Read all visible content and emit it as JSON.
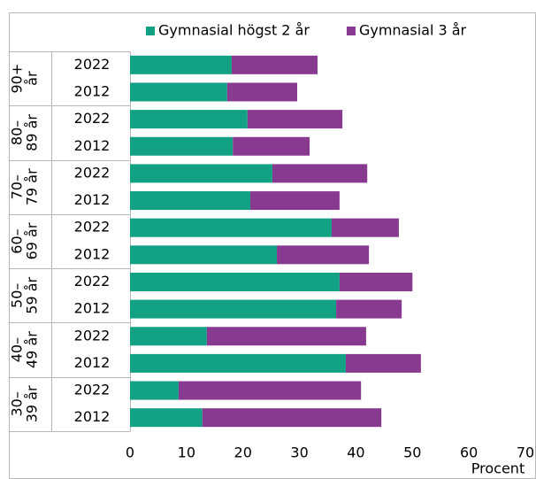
{
  "chart_data": {
    "type": "stacked-bar-horizontal",
    "groups": [
      {
        "label": [
          "90+",
          "år"
        ],
        "categories": [
          "2022",
          "2012"
        ]
      },
      {
        "label": [
          "80–",
          "89 år"
        ],
        "categories": [
          "2022",
          "2012"
        ]
      },
      {
        "label": [
          "70–",
          "79 år"
        ],
        "categories": [
          "2022",
          "2012"
        ]
      },
      {
        "label": [
          "60–",
          "69 år"
        ],
        "categories": [
          "2022",
          "2012"
        ]
      },
      {
        "label": [
          "50–",
          "59 år"
        ],
        "categories": [
          "2022",
          "2012"
        ]
      },
      {
        "label": [
          "40–",
          "49 år"
        ],
        "categories": [
          "2022",
          "2012"
        ]
      },
      {
        "label": [
          "30–",
          "39 år"
        ],
        "categories": [
          "2022",
          "2012"
        ]
      }
    ],
    "series": [
      {
        "name": "Gymnasial högst 2 år",
        "color": "#12a183",
        "values": [
          18.0,
          17.2,
          20.8,
          18.2,
          25.2,
          21.3,
          35.7,
          26.0,
          37.1,
          36.5,
          13.6,
          38.2,
          8.6,
          12.8
        ]
      },
      {
        "name": "Gymnasial 3 år",
        "color": "#873a90",
        "values": [
          15.2,
          12.4,
          16.8,
          13.6,
          16.8,
          15.8,
          11.9,
          16.3,
          12.9,
          11.6,
          28.2,
          13.3,
          32.3,
          31.7
        ]
      }
    ],
    "xlabel": "Procent",
    "xlim": [
      0,
      70
    ],
    "xticks": [
      0,
      10,
      20,
      30,
      40,
      50,
      60,
      70
    ],
    "grid": false
  }
}
